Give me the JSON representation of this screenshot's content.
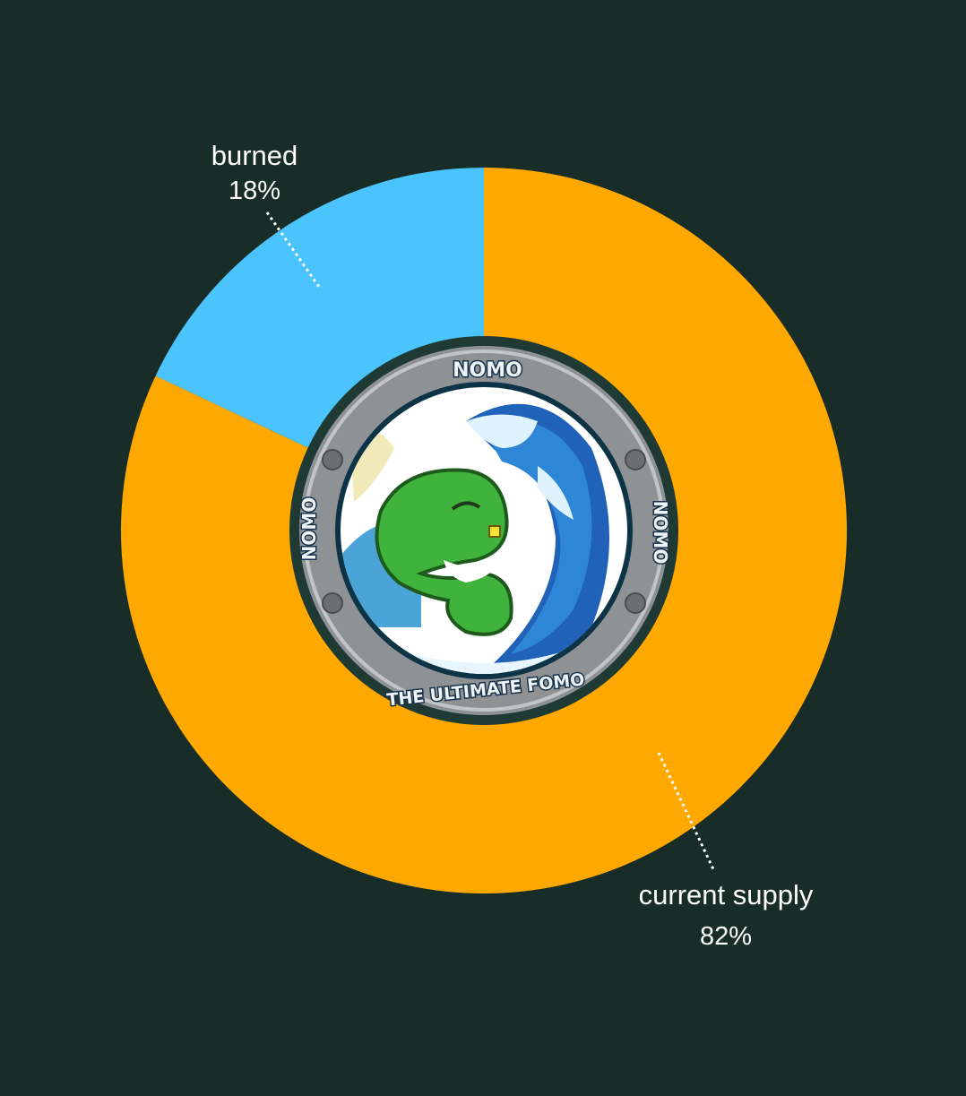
{
  "chart_data": {
    "type": "pie",
    "style": "donut",
    "slices": [
      {
        "label": "burned",
        "value": 18,
        "value_label": "18%",
        "color": "#4bc4fe"
      },
      {
        "label": "current supply",
        "value": 82,
        "value_label": "82%",
        "color": "#fea800"
      }
    ],
    "background": "#182d27",
    "leader_lines": "dotted white"
  },
  "logo": {
    "top_text": "NOMO",
    "left_text": "NOMO",
    "right_text": "NOMO",
    "bottom_text": "THE ULTIMATE FOMO"
  }
}
